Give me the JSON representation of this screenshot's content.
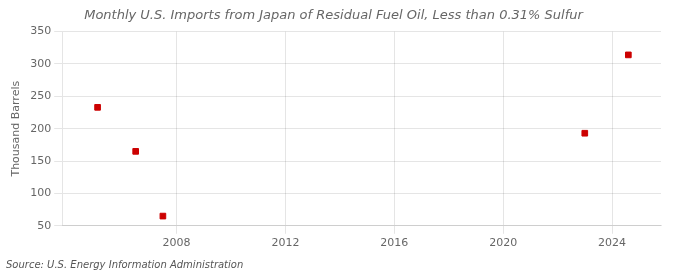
{
  "chart_data": {
    "type": "scatter",
    "title": "Monthly U.S. Imports from Japan of Residual Fuel Oil, Less than 0.31% Sulfur",
    "ylabel": "Thousand Barrels",
    "annotation": "Source: U.S. Energy Information Administration",
    "x": [
      2005.1,
      2006.5,
      2007.5,
      2023.0,
      2024.6
    ],
    "values": [
      233,
      165,
      65,
      193,
      314
    ],
    "color": "#cc0000",
    "marker": "square",
    "xlim": [
      2003.8,
      2025.8
    ],
    "ylim": [
      50,
      350
    ],
    "xticks": [
      2008,
      2012,
      2016,
      2020,
      2024
    ],
    "yticks": [
      50,
      100,
      150,
      200,
      250,
      300,
      350
    ],
    "grid": true
  }
}
